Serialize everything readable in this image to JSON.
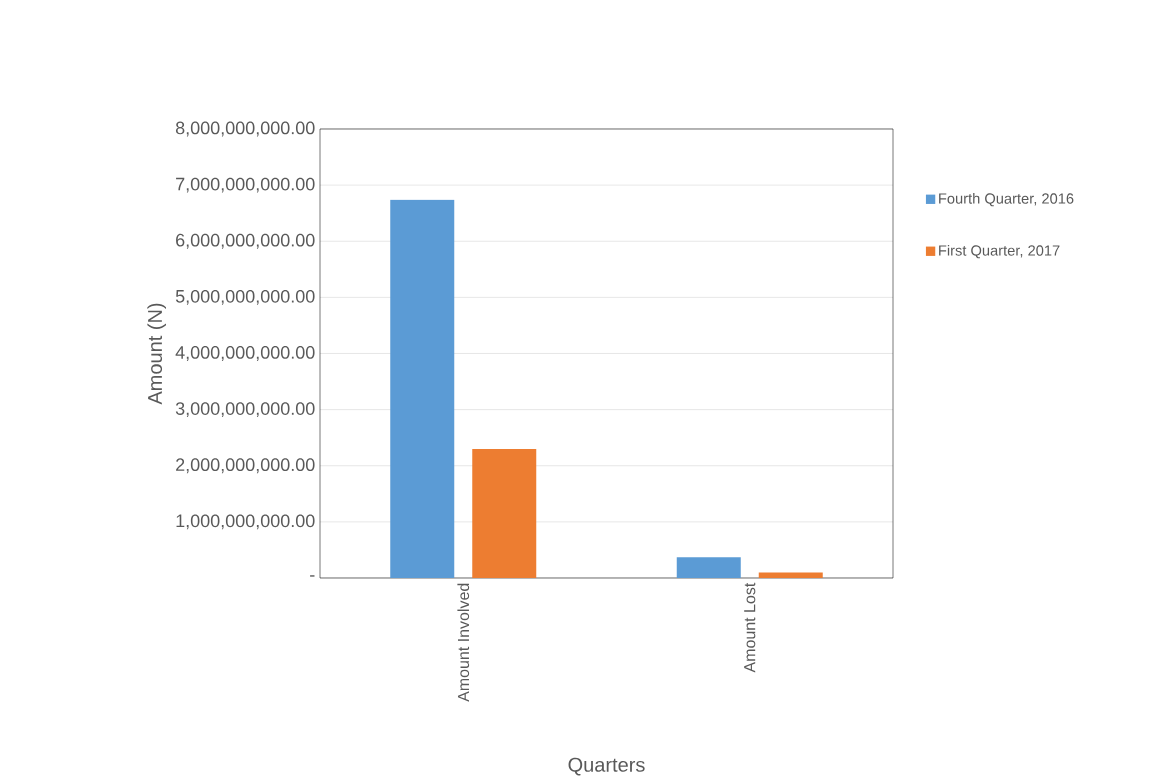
{
  "chart_data": {
    "type": "bar",
    "xlabel": "Quarters",
    "ylabel": "Amount (N)",
    "categories": [
      "Amount Involved",
      "Amount Lost"
    ],
    "series": [
      {
        "name": "Fourth Quarter, 2016",
        "color": "#5b9bd5",
        "values": [
          6740000000,
          370000000
        ]
      },
      {
        "name": "First Quarter, 2017",
        "color": "#ed7d31",
        "values": [
          2300000000,
          100000000
        ]
      }
    ],
    "ylim": [
      0,
      8000000000
    ],
    "yticks": [
      {
        "value": 0,
        "label": "-"
      },
      {
        "value": 1000000000,
        "label": "1,000,000,000.00"
      },
      {
        "value": 2000000000,
        "label": "2,000,000,000.00"
      },
      {
        "value": 3000000000,
        "label": "3,000,000,000.00"
      },
      {
        "value": 4000000000,
        "label": "4,000,000,000.00"
      },
      {
        "value": 5000000000,
        "label": "5,000,000,000.00"
      },
      {
        "value": 6000000000,
        "label": "6,000,000,000.00"
      },
      {
        "value": 7000000000,
        "label": "7,000,000,000.00"
      },
      {
        "value": 8000000000,
        "label": "8,000,000,000.00"
      }
    ],
    "grid": "y",
    "legend": "right"
  }
}
